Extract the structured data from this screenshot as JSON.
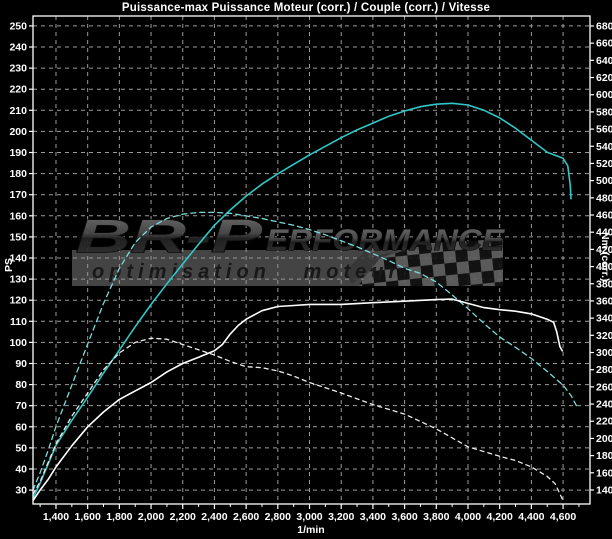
{
  "page": {
    "background": "#000000"
  },
  "chart_data": {
    "type": "line",
    "title": "Puissance-max Puissance Moteur (corr.) / Couple (corr.) / Vitesse",
    "x_axis": {
      "label": "1/min",
      "min": 1255,
      "max": 4770,
      "ticks": [
        1400,
        1600,
        1800,
        2000,
        2200,
        2400,
        2600,
        2800,
        3000,
        3200,
        3400,
        3600,
        3800,
        4000,
        4200,
        4400,
        4600
      ],
      "minor_step": 100,
      "tick_label_format": "thousands-comma"
    },
    "y_axis_left": {
      "label": "PS",
      "min": 23.4,
      "max": 254.7,
      "ticks": [
        30,
        40,
        50,
        60,
        70,
        80,
        90,
        100,
        110,
        120,
        130,
        140,
        150,
        160,
        170,
        180,
        190,
        200,
        210,
        220,
        230,
        240,
        250
      ]
    },
    "y_axis_right": {
      "label": "Nm (corr.)",
      "min": 123.7,
      "max": 691.6,
      "ticks": [
        140,
        160,
        180,
        200,
        220,
        240,
        260,
        280,
        300,
        320,
        340,
        360,
        380,
        400,
        420,
        440,
        460,
        480,
        500,
        520,
        540,
        560,
        580,
        600,
        620,
        640,
        660,
        680
      ]
    },
    "grid": {
      "show": true,
      "color": "#9b9b9b",
      "dash": "4 4"
    },
    "frame_color": "#ffffff",
    "background": "#000000",
    "legend_position": "none",
    "series": [
      {
        "id": "couple-corr-solid",
        "axis": "right",
        "unit": "Nm",
        "color": "#2fc7c7",
        "width": 1.6,
        "dash": "",
        "points": [
          [
            1255,
            130
          ],
          [
            1300,
            148
          ],
          [
            1350,
            170
          ],
          [
            1400,
            192
          ],
          [
            1500,
            221
          ],
          [
            1600,
            248
          ],
          [
            1700,
            276
          ],
          [
            1800,
            303
          ],
          [
            1900,
            330
          ],
          [
            2000,
            356
          ],
          [
            2100,
            380
          ],
          [
            2200,
            403
          ],
          [
            2300,
            426
          ],
          [
            2400,
            448
          ],
          [
            2500,
            466
          ],
          [
            2600,
            482
          ],
          [
            2700,
            496
          ],
          [
            2800,
            508
          ],
          [
            2900,
            519
          ],
          [
            3000,
            530
          ],
          [
            3100,
            540
          ],
          [
            3200,
            550
          ],
          [
            3300,
            559
          ],
          [
            3400,
            567
          ],
          [
            3500,
            575
          ],
          [
            3600,
            581
          ],
          [
            3700,
            586
          ],
          [
            3800,
            589
          ],
          [
            3900,
            590
          ],
          [
            4000,
            588
          ],
          [
            4100,
            582
          ],
          [
            4200,
            573
          ],
          [
            4300,
            561
          ],
          [
            4400,
            547
          ],
          [
            4500,
            533
          ],
          [
            4600,
            526
          ],
          [
            4630,
            517
          ],
          [
            4645,
            495
          ],
          [
            4650,
            479
          ]
        ]
      },
      {
        "id": "couple-dashed",
        "axis": "right",
        "unit": "Nm",
        "color": "#7adcdc",
        "width": 1.3,
        "dash": "5 4",
        "points": [
          [
            1255,
            140
          ],
          [
            1300,
            160
          ],
          [
            1350,
            186
          ],
          [
            1400,
            214
          ],
          [
            1500,
            262
          ],
          [
            1600,
            310
          ],
          [
            1700,
            357
          ],
          [
            1800,
            398
          ],
          [
            1900,
            428
          ],
          [
            2000,
            446
          ],
          [
            2100,
            456
          ],
          [
            2200,
            461
          ],
          [
            2300,
            463
          ],
          [
            2400,
            463
          ],
          [
            2500,
            462
          ],
          [
            2600,
            459
          ],
          [
            2700,
            456
          ],
          [
            2800,
            452
          ],
          [
            2900,
            448
          ],
          [
            3000,
            443
          ],
          [
            3100,
            437
          ],
          [
            3200,
            430
          ],
          [
            3300,
            423
          ],
          [
            3400,
            415
          ],
          [
            3500,
            407
          ],
          [
            3600,
            398
          ],
          [
            3700,
            392
          ],
          [
            3800,
            382
          ],
          [
            3900,
            367
          ],
          [
            4000,
            351
          ],
          [
            4100,
            334
          ],
          [
            4200,
            318
          ],
          [
            4300,
            306
          ],
          [
            4400,
            293
          ],
          [
            4500,
            278
          ],
          [
            4600,
            262
          ],
          [
            4650,
            250
          ],
          [
            4685,
            238
          ]
        ]
      },
      {
        "id": "puissance-corr-solid",
        "axis": "left",
        "unit": "PS",
        "color": "#ffffff",
        "width": 1.6,
        "dash": "",
        "points": [
          [
            1255,
            25
          ],
          [
            1300,
            30
          ],
          [
            1350,
            35
          ],
          [
            1400,
            41
          ],
          [
            1500,
            51
          ],
          [
            1600,
            60
          ],
          [
            1700,
            67
          ],
          [
            1800,
            73
          ],
          [
            1900,
            77
          ],
          [
            2000,
            81
          ],
          [
            2100,
            86
          ],
          [
            2200,
            90
          ],
          [
            2300,
            93
          ],
          [
            2400,
            96
          ],
          [
            2450,
            99
          ],
          [
            2500,
            104
          ],
          [
            2550,
            108
          ],
          [
            2600,
            111
          ],
          [
            2700,
            115
          ],
          [
            2800,
            117
          ],
          [
            2900,
            117.5
          ],
          [
            3000,
            118
          ],
          [
            3200,
            118
          ],
          [
            3400,
            118.8
          ],
          [
            3600,
            119.5
          ],
          [
            3800,
            120.3
          ],
          [
            3900,
            120.5
          ],
          [
            4000,
            118.5
          ],
          [
            4100,
            116.5
          ],
          [
            4200,
            115.5
          ],
          [
            4300,
            114.8
          ],
          [
            4400,
            113.5
          ],
          [
            4500,
            111
          ],
          [
            4540,
            109.5
          ],
          [
            4560,
            105
          ],
          [
            4580,
            98
          ],
          [
            4595,
            96
          ]
        ]
      },
      {
        "id": "puissance-dashed",
        "axis": "left",
        "unit": "PS",
        "color": "#ececec",
        "width": 1.3,
        "dash": "4 4",
        "points": [
          [
            1255,
            28
          ],
          [
            1300,
            34
          ],
          [
            1350,
            43
          ],
          [
            1400,
            52
          ],
          [
            1500,
            65
          ],
          [
            1600,
            76
          ],
          [
            1700,
            87
          ],
          [
            1800,
            95
          ],
          [
            1900,
            100
          ],
          [
            2000,
            102
          ],
          [
            2100,
            101.5
          ],
          [
            2200,
            99
          ],
          [
            2300,
            96.5
          ],
          [
            2400,
            94
          ],
          [
            2500,
            91
          ],
          [
            2600,
            88.5
          ],
          [
            2700,
            88
          ],
          [
            2800,
            86.5
          ],
          [
            2900,
            84
          ],
          [
            3000,
            81
          ],
          [
            3200,
            76
          ],
          [
            3400,
            70.5
          ],
          [
            3600,
            66
          ],
          [
            3800,
            59
          ],
          [
            4000,
            50.5
          ],
          [
            4200,
            46
          ],
          [
            4300,
            44
          ],
          [
            4400,
            41
          ],
          [
            4500,
            36.5
          ],
          [
            4550,
            33
          ],
          [
            4600,
            25
          ]
        ]
      }
    ]
  },
  "watermark": {
    "brand_big": "BR-P",
    "brand_rest": "ERFORMANCE",
    "tagline": "optimisation moteur",
    "bar_color": "#909090",
    "text_color": "#1a1a1a"
  }
}
